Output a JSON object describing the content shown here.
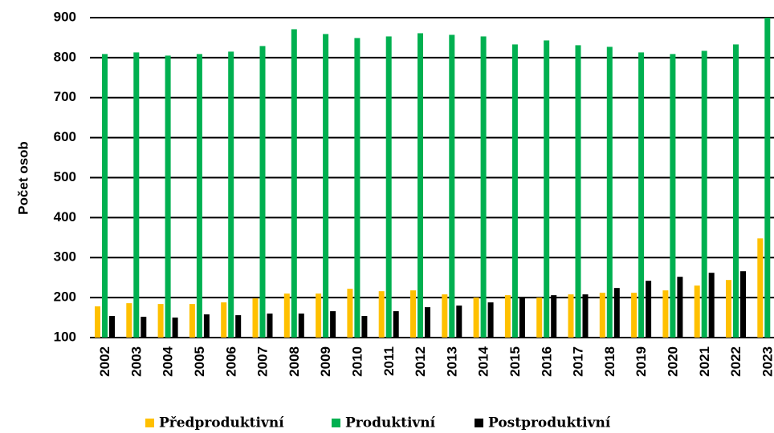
{
  "chart_data": {
    "type": "bar",
    "y_label": "Počet osob",
    "categories": [
      "2002",
      "2003",
      "2004",
      "2005",
      "2006",
      "2007",
      "2008",
      "2009",
      "2010",
      "2011",
      "2012",
      "2013",
      "2014",
      "2015",
      "2016",
      "2017",
      "2018",
      "2019",
      "2020",
      "2021",
      "2022",
      "2023"
    ],
    "series": [
      {
        "name": "Předproduktivní",
        "color": "#ffc000",
        "values": [
          178,
          186,
          184,
          184,
          188,
          198,
          210,
          210,
          222,
          216,
          218,
          208,
          200,
          206,
          200,
          208,
          212,
          212,
          218,
          230,
          244,
          348
        ]
      },
      {
        "name": "Produktivní",
        "color": "#00b050",
        "values": [
          809,
          813,
          805,
          809,
          815,
          829,
          871,
          859,
          849,
          853,
          861,
          857,
          853,
          833,
          843,
          831,
          827,
          813,
          809,
          817,
          833,
          900
        ]
      },
      {
        "name": "Postproduktivní",
        "color": "#000000",
        "values": [
          154,
          152,
          150,
          158,
          156,
          160,
          160,
          166,
          154,
          166,
          176,
          180,
          188,
          200,
          206,
          208,
          224,
          242,
          252,
          262,
          266,
          null
        ]
      }
    ],
    "ylim": [
      100,
      900
    ],
    "yticks": [
      100,
      200,
      300,
      400,
      500,
      600,
      700,
      800,
      900
    ],
    "grid": true,
    "legend": "bottom"
  }
}
